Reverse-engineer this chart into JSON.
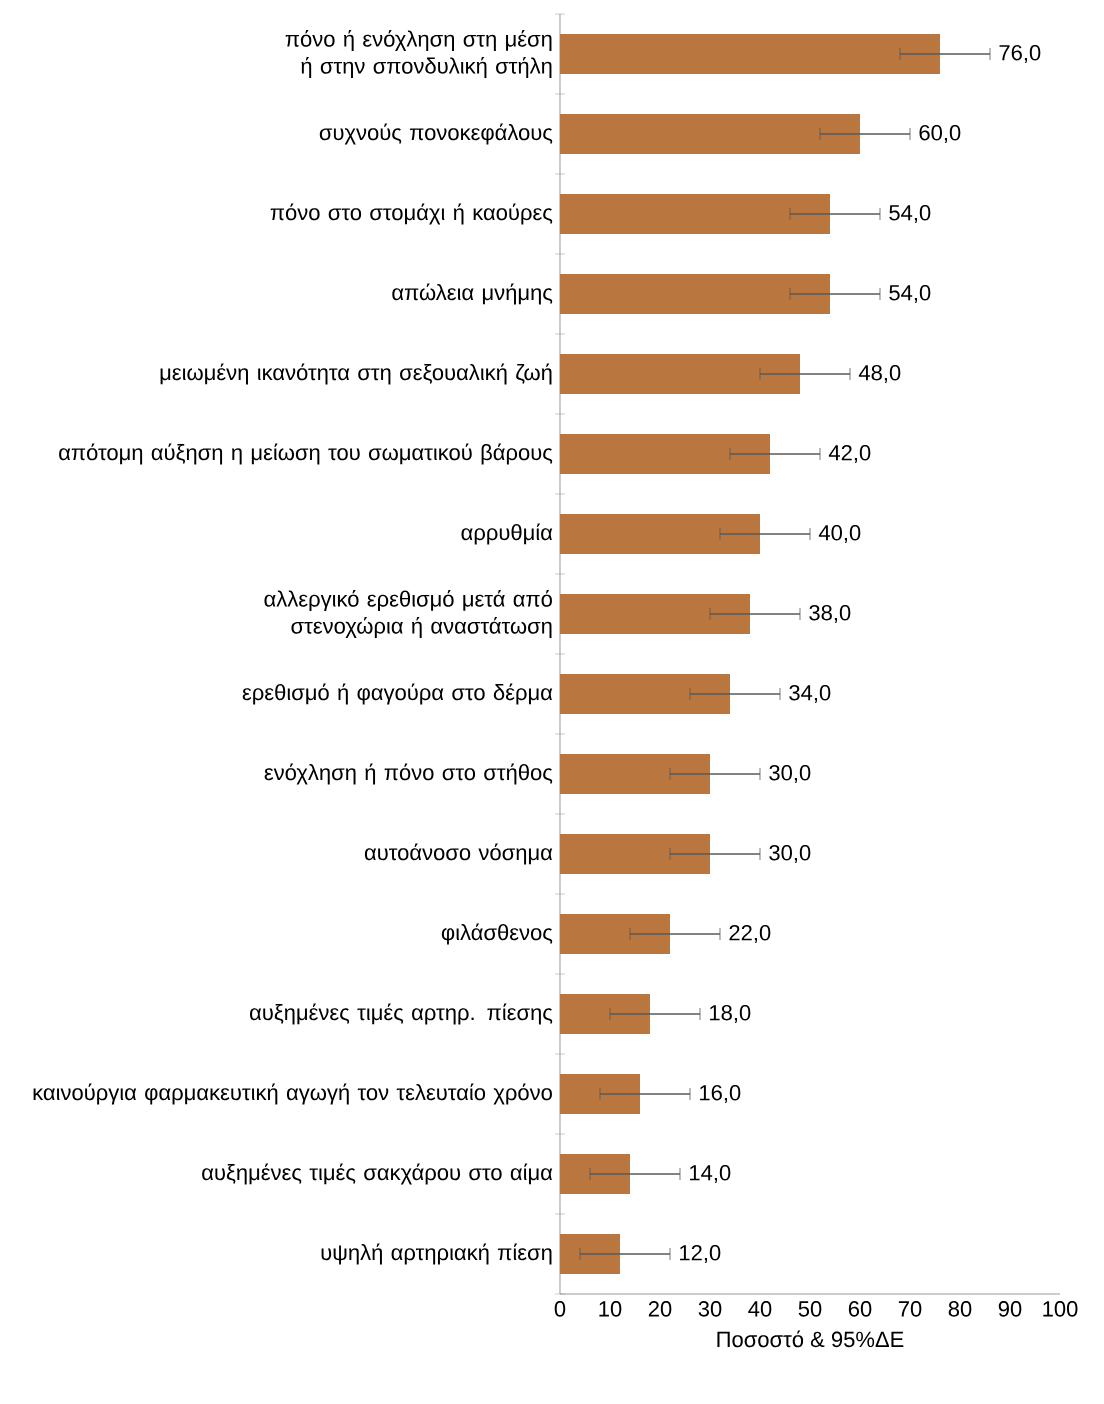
{
  "chart_data": {
    "type": "bar",
    "orientation": "horizontal",
    "xlabel": "Ποσοστό & 95%ΔΕ",
    "categories": [
      "πόνο ή ενόχληση στη μέση ή στην σπονδυλική στήλη",
      "συχνούς πονοκεφάλους",
      "πόνο στο στομάχι ή καούρες",
      "απώλεια μνήμης",
      "μειωμένη ικανότητα στη σεξουαλική ζωή",
      "απότομη αύξηση η μείωση του σωματικού βάρους",
      "αρρυθμία",
      "αλλεργικό ερεθισμό μετά από στενοχώρια ή αναστάτωση",
      "ερεθισμό ή φαγούρα στο δέρμα",
      "ενόχληση ή πόνο στο στήθος",
      "αυτοάνοσο νόσημα",
      "φιλάσθενος",
      "αυξημένες τιμές αρτηρ. πίεσης",
      "καινούργια φαρμακευτική αγωγή τον τελευταίο χρόνο",
      "αυξημένες τιμές σακχάρου στο αίμα",
      "υψηλή αρτηριακή πίεση"
    ],
    "values": [
      76,
      60,
      54,
      54,
      48,
      42,
      40,
      38,
      34,
      30,
      30,
      22,
      18,
      16,
      14,
      12
    ],
    "value_labels": [
      "76,0",
      "60,0",
      "54,0",
      "54,0",
      "48,0",
      "42,0",
      "40,0",
      "38,0",
      "34,0",
      "30,0",
      "30,0",
      "22,0",
      "18,0",
      "16,0",
      "14,0",
      "12,0"
    ],
    "errors": [
      [
        68,
        86
      ],
      [
        52,
        70
      ],
      [
        46,
        64
      ],
      [
        46,
        64
      ],
      [
        40,
        58
      ],
      [
        34,
        52
      ],
      [
        32,
        50
      ],
      [
        30,
        48
      ],
      [
        26,
        44
      ],
      [
        22,
        40
      ],
      [
        22,
        40
      ],
      [
        14,
        32
      ],
      [
        10,
        28
      ],
      [
        8,
        26
      ],
      [
        6,
        24
      ],
      [
        4,
        22
      ]
    ],
    "color": "#b9773f",
    "xlim": [
      0,
      100
    ],
    "xticks": [
      0,
      10,
      20,
      30,
      40,
      50,
      60,
      70,
      80,
      90,
      100
    ],
    "grid": false
  }
}
